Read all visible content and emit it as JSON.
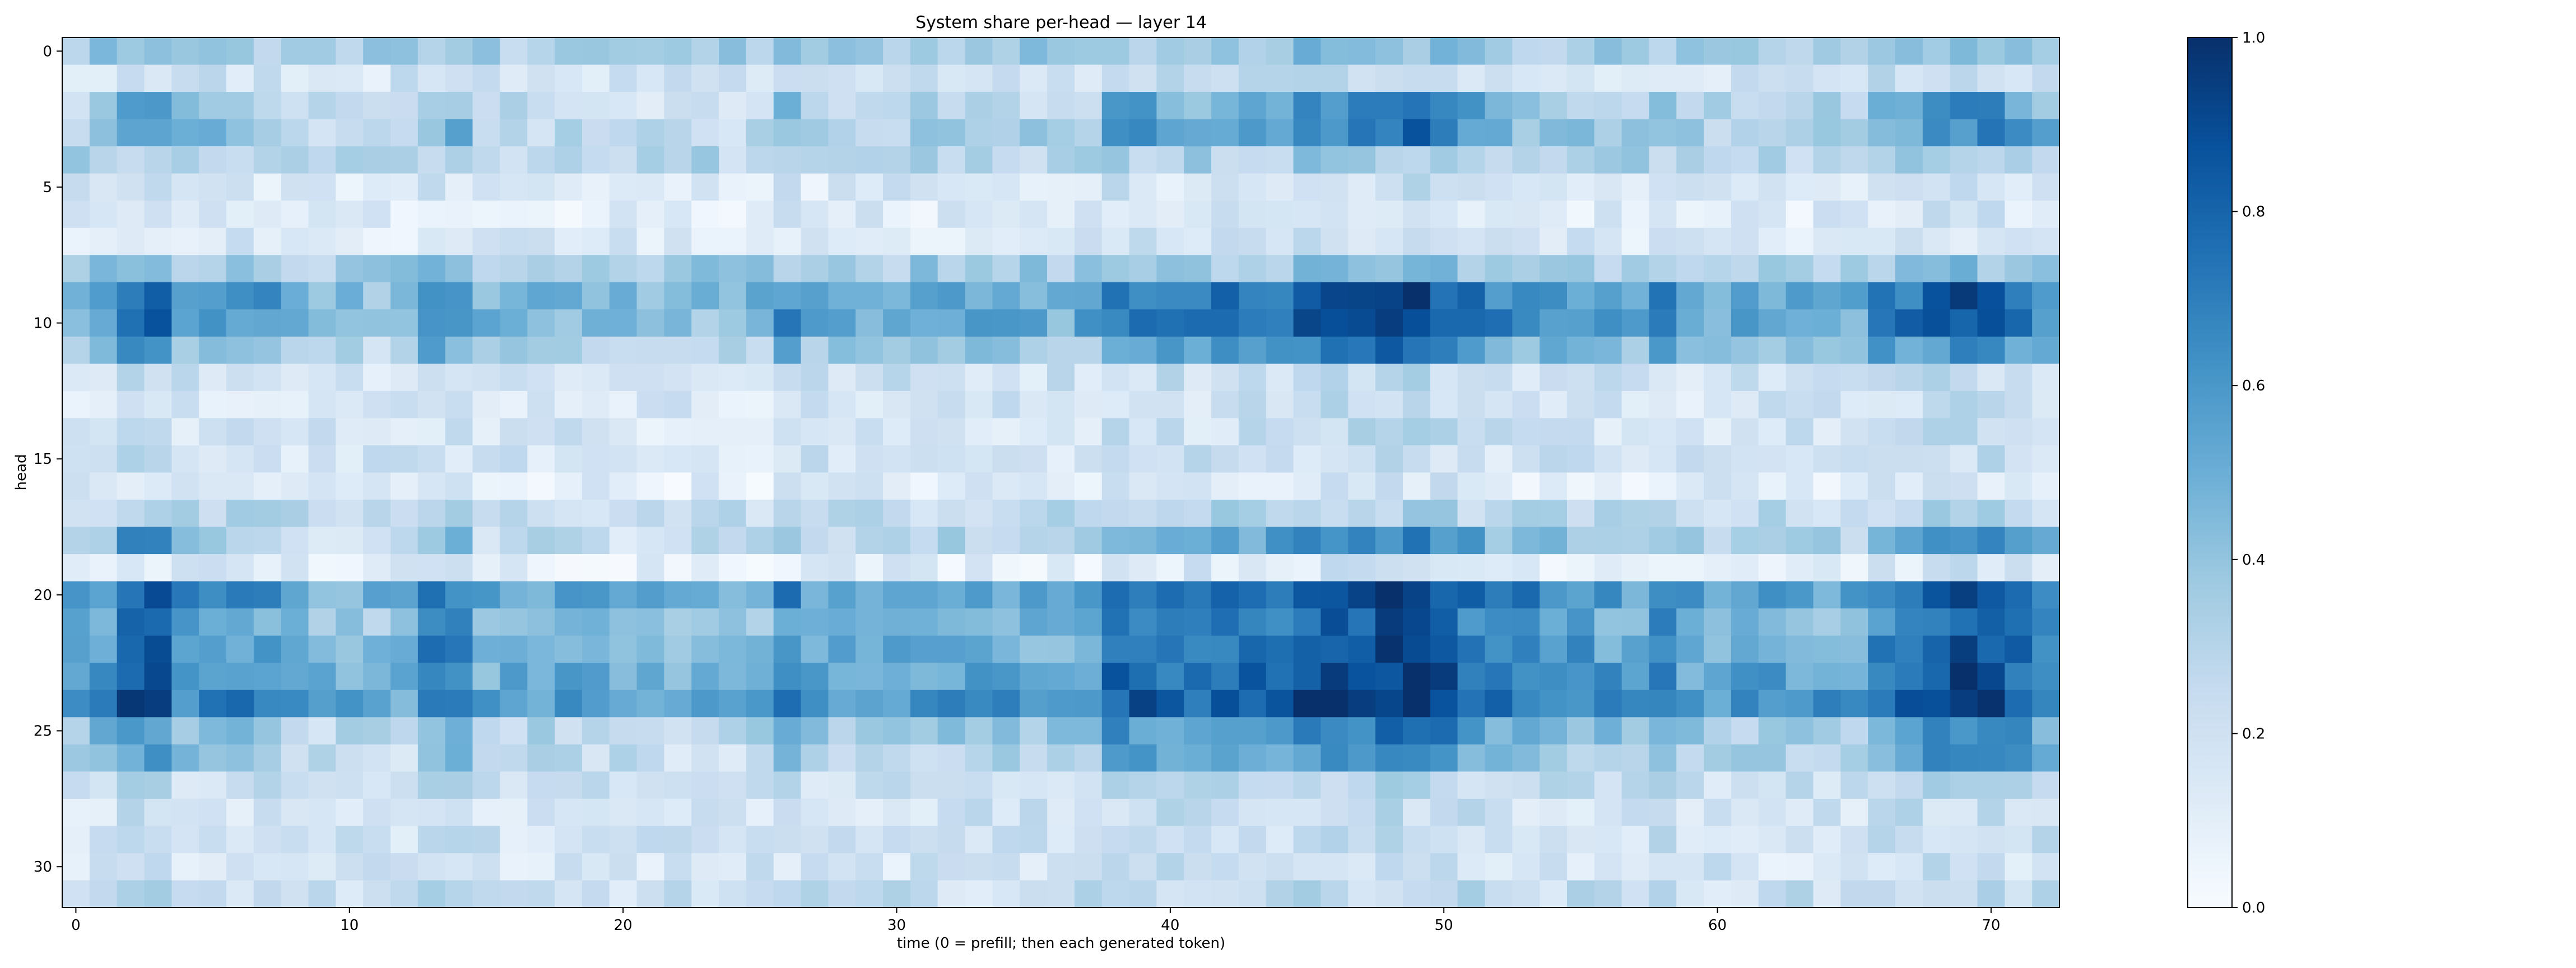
{
  "chart_data": {
    "type": "heatmap",
    "title": "System share per-head — layer 14",
    "xlabel": "time (0 = prefill; then each generated token)",
    "ylabel": "head",
    "x_range": [
      0,
      72
    ],
    "y_range": [
      0,
      31
    ],
    "x_ticks": [
      "0",
      "10",
      "20",
      "30",
      "40",
      "50",
      "60",
      "70"
    ],
    "y_ticks": [
      "0",
      "5",
      "10",
      "15",
      "20",
      "25",
      "30"
    ],
    "colormap": "Blues",
    "value_range": [
      0,
      1
    ],
    "colorbar_ticks": [
      "0.0",
      "0.2",
      "0.4",
      "0.6",
      "0.8",
      "1.0"
    ],
    "colormap_stops": [
      "#f7fbff",
      "#deebf7",
      "#c6dbef",
      "#9ecae1",
      "#6baed6",
      "#4292c6",
      "#2171b5",
      "#08519c",
      "#08306b"
    ],
    "rows_count": 32,
    "cols_count": 73,
    "row_profile": [
      0.35,
      0.18,
      0.28,
      0.32,
      0.3,
      0.15,
      0.13,
      0.14,
      0.35,
      0.5,
      0.5,
      0.35,
      0.2,
      0.17,
      0.18,
      0.18,
      0.12,
      0.25,
      0.3,
      0.12,
      0.55,
      0.45,
      0.5,
      0.55,
      0.6,
      0.35,
      0.3,
      0.22,
      0.18,
      0.2,
      0.17,
      0.22
    ],
    "col_profile": [
      0.0,
      0.05,
      0.18,
      0.18,
      0.05,
      0.05,
      0.05,
      0.05,
      0.0,
      -0.05,
      -0.05,
      -0.05,
      -0.05,
      0.1,
      0.1,
      -0.03,
      -0.03,
      -0.03,
      -0.03,
      -0.03,
      -0.05,
      -0.05,
      -0.05,
      -0.05,
      -0.05,
      -0.02,
      0.08,
      0.0,
      0.0,
      0.0,
      0.0,
      0.0,
      0.0,
      0.0,
      0.0,
      0.0,
      0.0,
      0.02,
      0.15,
      0.15,
      0.12,
      0.12,
      0.15,
      0.15,
      0.15,
      0.2,
      0.22,
      0.22,
      0.25,
      0.28,
      0.2,
      0.15,
      0.1,
      0.08,
      0.05,
      0.05,
      0.03,
      0.0,
      0.1,
      0.0,
      0.0,
      0.0,
      0.0,
      0.0,
      0.0,
      0.0,
      0.12,
      0.15,
      0.18,
      0.22,
      0.2,
      0.15,
      0.1
    ],
    "modulated_rows": [
      2,
      3,
      9,
      10,
      11,
      18,
      20,
      21,
      22,
      23,
      24,
      25,
      26
    ]
  }
}
